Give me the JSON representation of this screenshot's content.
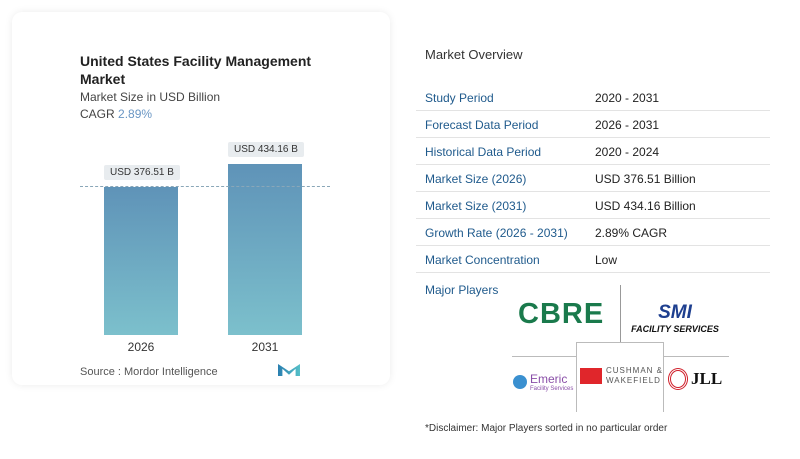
{
  "card": {
    "title": "United States Facility Management Market",
    "subtitle": "Market Size in USD Billion",
    "cagr_label": "CAGR",
    "cagr_value": "2.89%",
    "source": "Source :  Mordor Intelligence"
  },
  "chart_data": {
    "type": "bar",
    "categories": [
      "2026",
      "2031"
    ],
    "values": [
      376.51,
      434.16
    ],
    "data_labels": [
      "USD 376.51 B",
      "USD 434.16 B"
    ],
    "ylim": [
      0,
      434.16
    ],
    "colors": [
      "#5f93b8",
      "#7cc0cc"
    ]
  },
  "overview": {
    "title": "Market Overview",
    "rows": [
      {
        "label": "Study Period",
        "value": "2020 - 2031"
      },
      {
        "label": "Forecast Data Period",
        "value": "2026 - 2031"
      },
      {
        "label": "Historical Data Period",
        "value": "2020 - 2024"
      },
      {
        "label": "Market Size (2026)",
        "value": "USD 376.51 Billion"
      },
      {
        "label": "Market Size (2031)",
        "value": "USD 434.16 Billion"
      },
      {
        "label": "Growth Rate (2026 - 2031)",
        "value": "2.89% CAGR"
      },
      {
        "label": "Market Concentration",
        "value": "Low"
      }
    ],
    "major_players_label": "Major Players",
    "players": [
      "CBRE",
      "SMI Facility Services",
      "Emeric Facility Services",
      "Cushman & Wakefield",
      "JLL"
    ],
    "disclaimer": "*Disclaimer: Major Players sorted in no particular order"
  }
}
